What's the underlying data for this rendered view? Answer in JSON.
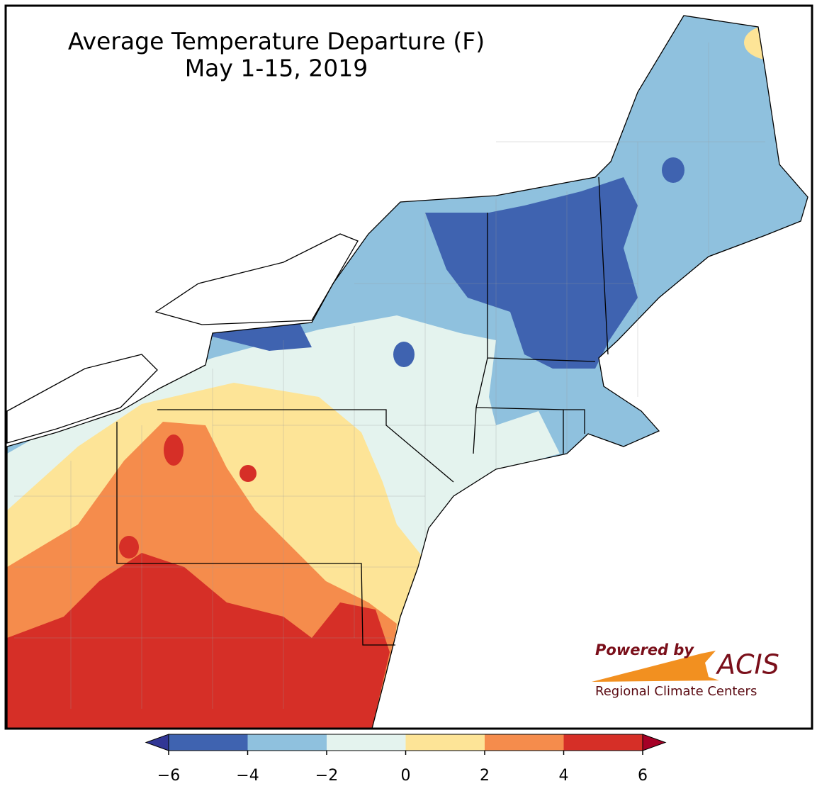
{
  "title": "Average Temperature Departure (F)",
  "subtitle": "May 1-15, 2019",
  "colorbar": {
    "min": -6,
    "max": 6,
    "ticks": [
      {
        "value": -6,
        "label": "−6"
      },
      {
        "value": -4,
        "label": "−4"
      },
      {
        "value": -2,
        "label": "−2"
      },
      0,
      2,
      4,
      6
    ],
    "colors": [
      "#3f63b0",
      "#8fc1de",
      "#e4f3ee",
      "#fde497",
      "#f58c4c",
      "#d62f27"
    ],
    "under_color": "#313695",
    "over_color": "#a50026"
  },
  "logo": {
    "powered_by": "Powered by",
    "name": "ACIS",
    "tagline": "Regional Climate Centers"
  }
}
